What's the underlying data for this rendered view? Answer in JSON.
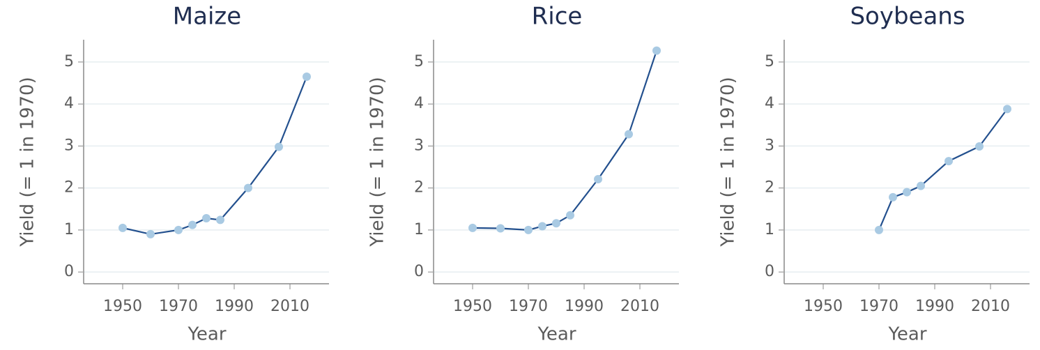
{
  "chart_data": [
    {
      "type": "line",
      "title": "Maize",
      "x_label": "Year",
      "y_label": "Yield (= 1 in 1970)",
      "x": [
        1950,
        1960,
        1970,
        1975,
        1980,
        1985,
        1995,
        2006,
        2016
      ],
      "series": [
        {
          "line_color": "#23508e",
          "color": "#a9cae3",
          "values": [
            1.05,
            0.9,
            1.0,
            1.12,
            1.28,
            1.24,
            2.0,
            2.98,
            4.65
          ]
        }
      ],
      "xlim": [
        1936,
        2024
      ],
      "xticks": [
        1950,
        1970,
        1990,
        2010
      ],
      "ylim": [
        -0.28,
        5.53
      ],
      "yticks": [
        0,
        1,
        2,
        3,
        4,
        5
      ],
      "grid": true
    },
    {
      "type": "line",
      "title": "Rice",
      "x_label": "Year",
      "y_label": "Yield (= 1 in 1970)",
      "x": [
        1950,
        1960,
        1970,
        1975,
        1980,
        1985,
        1995,
        2006,
        2016
      ],
      "series": [
        {
          "line_color": "#23508e",
          "color": "#a9cae3",
          "values": [
            1.05,
            1.04,
            1.0,
            1.09,
            1.16,
            1.35,
            2.21,
            3.28,
            5.27
          ]
        }
      ],
      "xlim": [
        1936,
        2024
      ],
      "xticks": [
        1950,
        1970,
        1990,
        2010
      ],
      "ylim": [
        -0.28,
        5.53
      ],
      "yticks": [
        0,
        1,
        2,
        3,
        4,
        5
      ],
      "grid": true
    },
    {
      "type": "line",
      "title": "Soybeans",
      "x_label": "Year",
      "y_label": "Yield (= 1 in 1970)",
      "x": [
        1950,
        1960,
        1970,
        1975,
        1980,
        1985,
        1995,
        2006,
        2016
      ],
      "series": [
        {
          "line_color": "#23508e",
          "color": "#a9cae3",
          "values": [
            null,
            null,
            1.0,
            1.78,
            1.9,
            2.05,
            2.64,
            2.99,
            3.88
          ]
        }
      ],
      "xlim": [
        1936,
        2024
      ],
      "xticks": [
        1950,
        1970,
        1990,
        2010
      ],
      "ylim": [
        -0.28,
        5.53
      ],
      "yticks": [
        0,
        1,
        2,
        3,
        4,
        5
      ],
      "grid": true
    }
  ]
}
